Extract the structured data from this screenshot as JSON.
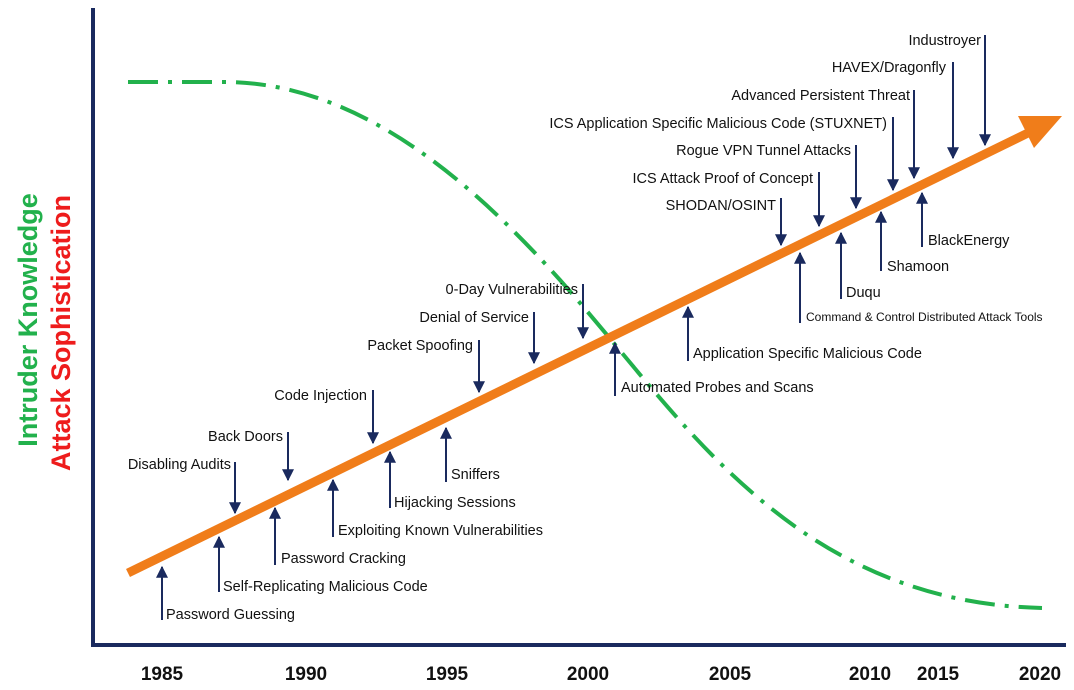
{
  "y_axis_labels": [
    "Intruder Knowledge",
    "Attack Sophistication"
  ],
  "x_axis_labels": [
    "1985",
    "1990",
    "1995",
    "2000",
    "2005",
    "2010",
    "2015",
    "2020"
  ],
  "events": [
    "Password Guessing",
    "Self-Replicating Malicious Code",
    "Disabling Audits",
    "Password Cracking",
    "Back Doors",
    "Exploiting Known Vulnerabilities",
    "Code Injection",
    "Hijacking Sessions",
    "Sniffers",
    "Packet Spoofing",
    "Denial of Service",
    "0-Day Vulnerabilities",
    "Automated Probes and Scans",
    "Application Specific Malicious Code",
    "SHODAN/OSINT",
    "Command & Control Distributed Attack Tools",
    "ICS Attack Proof of Concept",
    "Duqu",
    "Rogue VPN Tunnel Attacks",
    "Shamoon",
    "ICS Application Specific Malicious Code (STUXNET)",
    "Advanced Persistent Threat",
    "HAVEX/Dragonfly",
    "BlackEnergy",
    "Industroyer"
  ]
}
